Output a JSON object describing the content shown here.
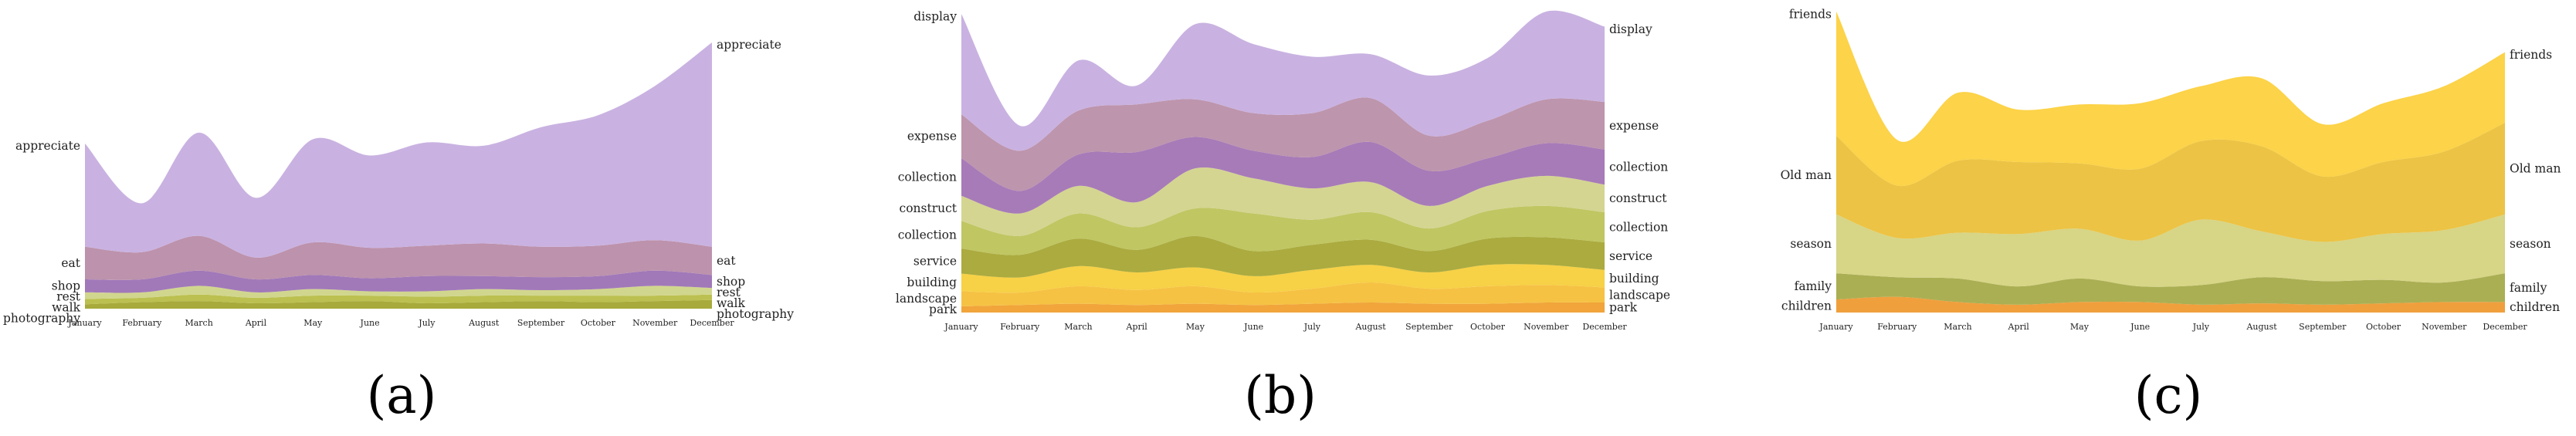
{
  "months": [
    "January",
    "February",
    "March",
    "April",
    "May",
    "June",
    "July",
    "August",
    "September",
    "October",
    "November",
    "December"
  ],
  "chart_data": [
    {
      "type": "area",
      "panel_label": "(a)",
      "left_labels": [
        "appreciate",
        "eat",
        "shop",
        "rest",
        "walk",
        "photography"
      ],
      "right_labels": [
        "appreciate",
        "eat",
        "shop",
        "rest",
        "walk",
        "photography"
      ],
      "series": [
        {
          "name": "photography",
          "color": "#a3a530",
          "values": [
            4,
            6,
            7,
            5,
            6,
            7,
            5,
            6,
            7,
            6,
            7,
            8
          ]
        },
        {
          "name": "walk",
          "color": "#b7bd47",
          "values": [
            5,
            4,
            6,
            5,
            6,
            5,
            6,
            6,
            5,
            6,
            5,
            5
          ]
        },
        {
          "name": "rest",
          "color": "#cfd488",
          "values": [
            6,
            5,
            8,
            5,
            6,
            4,
            5,
            6,
            5,
            6,
            9,
            6
          ]
        },
        {
          "name": "shop",
          "color": "#9c72b5",
          "values": [
            12,
            12,
            14,
            12,
            13,
            12,
            14,
            12,
            12,
            12,
            14,
            12
          ]
        },
        {
          "name": "eat",
          "color": "#b98ca8",
          "values": [
            30,
            25,
            32,
            20,
            30,
            28,
            28,
            30,
            28,
            28,
            28,
            26
          ]
        },
        {
          "name": "appreciate",
          "color": "#c6aedf",
          "values": [
            95,
            45,
            95,
            55,
            95,
            85,
            95,
            90,
            110,
            120,
            142,
            188
          ]
        }
      ]
    },
    {
      "type": "area",
      "panel_label": "(b)",
      "left_labels": [
        "display",
        "expense",
        "collection",
        "construct",
        "collection",
        "service",
        "building",
        "landscape",
        "park"
      ],
      "right_labels": [
        "display",
        "expense",
        "collection",
        "construct",
        "collection",
        "service",
        "building",
        "landscape",
        "park"
      ],
      "series": [
        {
          "name": "park",
          "color": "#f0a030",
          "values": [
            5,
            6,
            7,
            6,
            7,
            6,
            7,
            8,
            7,
            7,
            8,
            8
          ]
        },
        {
          "name": "landscape",
          "color": "#f5bf3a",
          "values": [
            12,
            10,
            14,
            12,
            14,
            10,
            12,
            16,
            12,
            14,
            14,
            12
          ]
        },
        {
          "name": "building",
          "color": "#f7cf3c",
          "values": [
            14,
            12,
            16,
            14,
            15,
            13,
            15,
            14,
            13,
            17,
            16,
            14
          ]
        },
        {
          "name": "service",
          "color": "#a6a635",
          "values": [
            20,
            18,
            22,
            18,
            25,
            20,
            20,
            20,
            17,
            21,
            22,
            22
          ]
        },
        {
          "name": "collection",
          "color": "#bdc35a",
          "values": [
            22,
            15,
            20,
            18,
            22,
            30,
            20,
            22,
            18,
            22,
            25,
            24
          ]
        },
        {
          "name": "construct",
          "color": "#d2d38b",
          "values": [
            20,
            18,
            22,
            20,
            32,
            28,
            25,
            24,
            18,
            20,
            24,
            22
          ]
        },
        {
          "name": "collection",
          "color": "#a274b4",
          "values": [
            30,
            18,
            25,
            40,
            25,
            22,
            25,
            32,
            28,
            22,
            26,
            28
          ]
        },
        {
          "name": "expense",
          "color": "#b98fa9",
          "values": [
            35,
            32,
            35,
            38,
            30,
            30,
            35,
            35,
            28,
            30,
            35,
            38
          ]
        },
        {
          "name": "display",
          "color": "#c6aedf",
          "values": [
            80,
            20,
            40,
            15,
            60,
            55,
            45,
            35,
            48,
            50,
            70,
            60
          ]
        }
      ]
    },
    {
      "type": "area",
      "panel_label": "(c)",
      "left_labels": [
        "friends",
        "Old man",
        "season",
        "family",
        "children"
      ],
      "right_labels": [
        "friends",
        "Old man",
        "season",
        "family",
        "children"
      ],
      "series": [
        {
          "name": "children",
          "color": "#ef9a33",
          "values": [
            10,
            12,
            8,
            6,
            8,
            8,
            6,
            7,
            6,
            7,
            8,
            8
          ]
        },
        {
          "name": "family",
          "color": "#a7ab4a",
          "values": [
            20,
            15,
            18,
            14,
            18,
            12,
            15,
            20,
            18,
            18,
            15,
            22
          ]
        },
        {
          "name": "season",
          "color": "#d5d37f",
          "values": [
            45,
            30,
            35,
            40,
            38,
            35,
            50,
            35,
            30,
            35,
            40,
            45
          ]
        },
        {
          "name": "Old man",
          "color": "#ebc03a",
          "values": [
            60,
            40,
            55,
            55,
            50,
            55,
            60,
            65,
            50,
            55,
            60,
            70
          ]
        },
        {
          "name": "friends",
          "color": "#fcd13f",
          "values": [
            95,
            35,
            52,
            40,
            45,
            50,
            42,
            52,
            40,
            45,
            50,
            54
          ]
        }
      ]
    }
  ]
}
